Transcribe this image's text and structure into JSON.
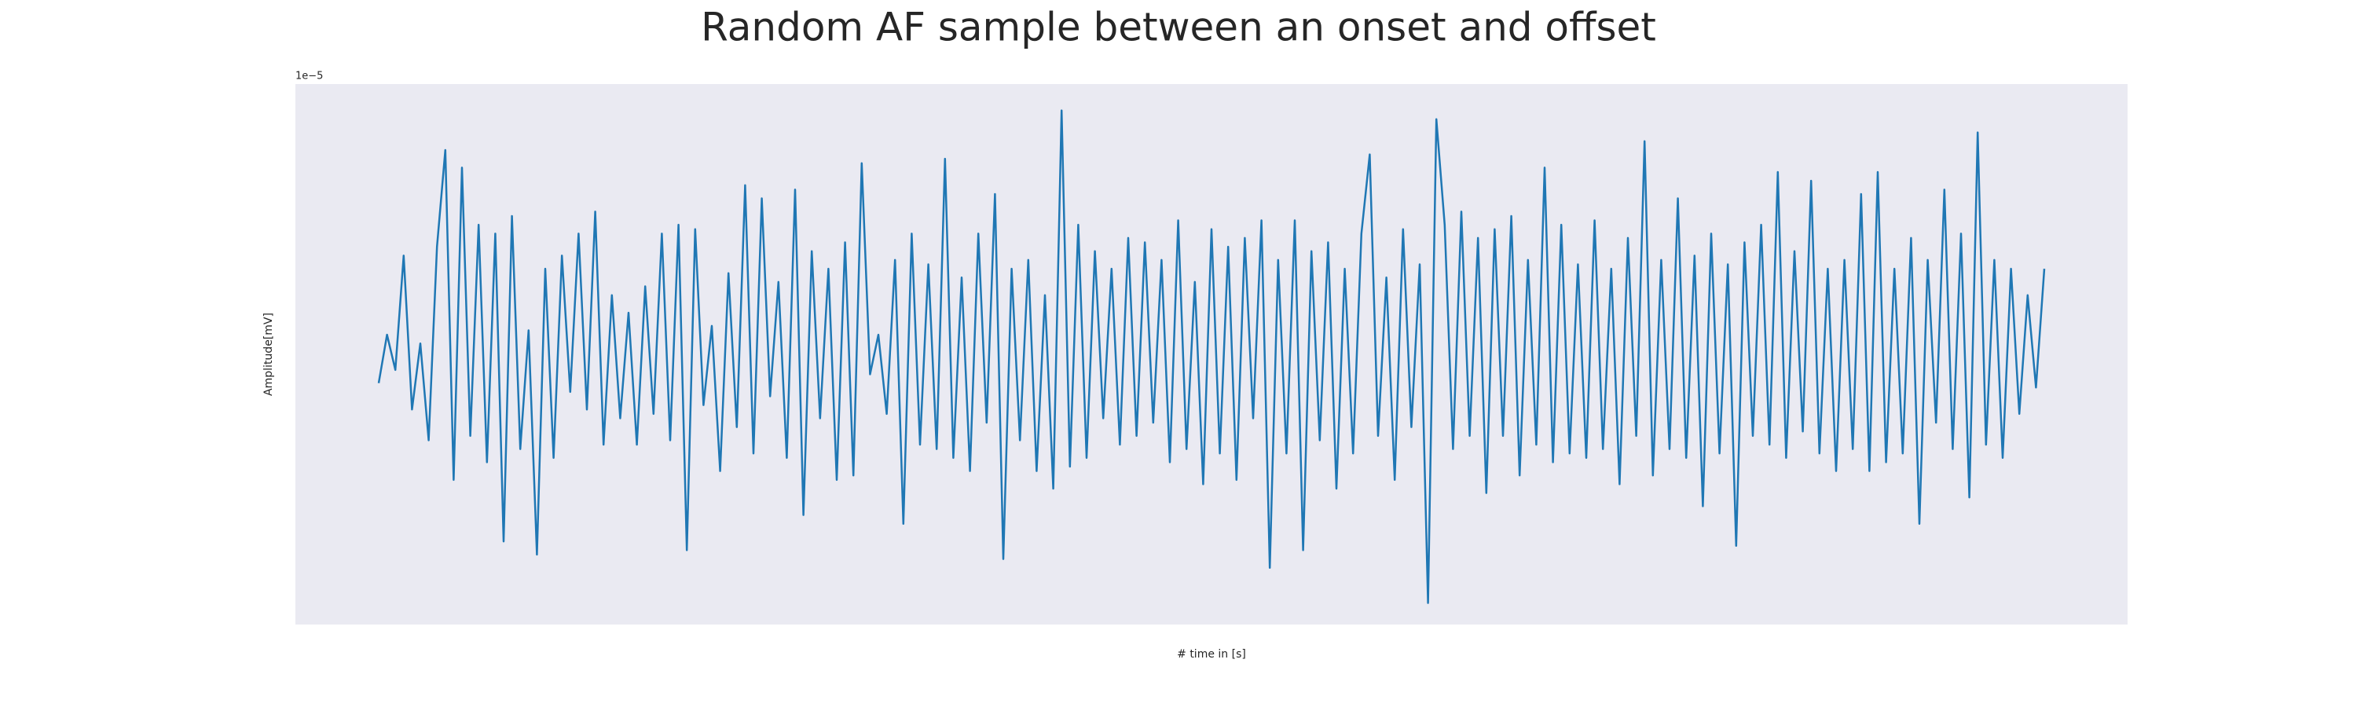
{
  "chart_data": {
    "type": "line",
    "title": "Random AF sample between an onset and offset",
    "xlabel": "# time in [s]",
    "ylabel": "Amplitude[mV]",
    "y_offset_label": "1e−5",
    "color": "#1f77b4",
    "grid": true,
    "minor_grid": true,
    "xlim": [
      -0.5,
      10.5
    ],
    "ylim": [
      -6.29,
      6.0
    ],
    "xticks": [
      0,
      1,
      2,
      3,
      4,
      5,
      6,
      7,
      8,
      9,
      10
    ],
    "yticks": [
      -6,
      -4,
      -2,
      0,
      2,
      4
    ],
    "x": [
      0,
      0.05,
      0.1,
      0.15,
      0.2,
      0.25,
      0.3,
      0.35,
      0.4,
      0.45,
      0.5,
      0.55,
      0.6,
      0.65,
      0.7,
      0.75,
      0.8,
      0.85,
      0.9,
      0.95,
      1,
      1.05,
      1.1,
      1.15,
      1.2,
      1.25,
      1.3,
      1.35,
      1.4,
      1.45,
      1.5,
      1.55,
      1.6,
      1.65,
      1.7,
      1.75,
      1.8,
      1.85,
      1.9,
      1.95,
      2,
      2.05,
      2.1,
      2.15,
      2.2,
      2.25,
      2.3,
      2.35,
      2.4,
      2.45,
      2.5,
      2.55,
      2.6,
      2.65,
      2.7,
      2.75,
      2.8,
      2.85,
      2.9,
      2.95,
      3,
      3.05,
      3.1,
      3.15,
      3.2,
      3.25,
      3.3,
      3.35,
      3.4,
      3.45,
      3.5,
      3.55,
      3.6,
      3.65,
      3.7,
      3.75,
      3.8,
      3.85,
      3.9,
      3.95,
      4,
      4.05,
      4.1,
      4.15,
      4.2,
      4.25,
      4.3,
      4.35,
      4.4,
      4.45,
      4.5,
      4.55,
      4.6,
      4.65,
      4.7,
      4.75,
      4.8,
      4.85,
      4.9,
      4.95,
      5,
      5.05,
      5.1,
      5.15,
      5.2,
      5.25,
      5.3,
      5.35,
      5.4,
      5.45,
      5.5,
      5.55,
      5.6,
      5.65,
      5.7,
      5.75,
      5.8,
      5.85,
      5.9,
      5.95,
      6,
      6.05,
      6.1,
      6.15,
      6.2,
      6.25,
      6.3,
      6.35,
      6.4,
      6.45,
      6.5,
      6.55,
      6.6,
      6.65,
      6.7,
      6.75,
      6.8,
      6.85,
      6.9,
      6.95,
      7,
      7.05,
      7.1,
      7.15,
      7.2,
      7.25,
      7.3,
      7.35,
      7.4,
      7.45,
      7.5,
      7.55,
      7.6,
      7.65,
      7.7,
      7.75,
      7.8,
      7.85,
      7.9,
      7.95,
      8,
      8.05,
      8.1,
      8.15,
      8.2,
      8.25,
      8.3,
      8.35,
      8.4,
      8.45,
      8.5,
      8.55,
      8.6,
      8.65,
      8.7,
      8.75,
      8.8,
      8.85,
      8.9,
      8.95,
      9,
      9.05,
      9.1,
      9.15,
      9.2,
      9.25,
      9.3,
      9.35,
      9.4,
      9.45,
      9.5,
      9.55,
      9.6,
      9.65,
      9.7,
      9.75,
      9.8,
      9.85,
      9.9,
      9.95,
      10
    ],
    "values": [
      -0.8,
      0.3,
      -0.5,
      2.1,
      -1.4,
      0.1,
      -2.1,
      2.3,
      4.5,
      -3.0,
      4.1,
      -2.0,
      2.8,
      -2.6,
      2.6,
      -4.4,
      3.0,
      -2.3,
      0.4,
      -4.7,
      1.8,
      -2.5,
      2.1,
      -1.0,
      2.6,
      -1.4,
      3.1,
      -2.2,
      1.2,
      -1.6,
      0.8,
      -2.2,
      1.4,
      -1.5,
      2.6,
      -2.1,
      2.8,
      -4.6,
      2.7,
      -1.3,
      0.5,
      -2.8,
      1.7,
      -1.8,
      3.7,
      -2.4,
      3.4,
      -1.1,
      1.5,
      -2.5,
      3.6,
      -3.8,
      2.2,
      -1.6,
      1.8,
      -3.0,
      2.4,
      -2.9,
      4.2,
      -0.6,
      0.3,
      -1.5,
      2.0,
      -4.0,
      2.6,
      -2.2,
      1.9,
      -2.3,
      4.3,
      -2.5,
      1.6,
      -2.8,
      2.6,
      -1.7,
      3.5,
      -4.8,
      1.8,
      -2.1,
      2.0,
      -2.8,
      1.2,
      -3.2,
      5.4,
      -2.7,
      2.8,
      -2.5,
      2.2,
      -1.6,
      1.8,
      -2.2,
      2.5,
      -2.0,
      2.4,
      -1.7,
      2.0,
      -2.6,
      2.9,
      -2.3,
      1.5,
      -3.1,
      2.7,
      -2.4,
      2.3,
      -3.0,
      2.5,
      -1.6,
      2.9,
      -5.0,
      2.0,
      -2.4,
      2.9,
      -4.6,
      2.2,
      -2.1,
      2.4,
      -3.2,
      1.8,
      -2.4,
      2.6,
      4.4,
      -2.0,
      1.6,
      -3.0,
      2.7,
      -1.8,
      1.9,
      -5.8,
      5.2,
      2.8,
      -2.3,
      3.1,
      -2.0,
      2.5,
      -3.3,
      2.7,
      -2.0,
      3.0,
      -2.9,
      2.0,
      -2.2,
      4.1,
      -2.6,
      2.8,
      -2.4,
      1.9,
      -2.5,
      2.9,
      -2.3,
      1.8,
      -3.1,
      2.5,
      -2.0,
      4.7,
      -2.9,
      2.0,
      -2.3,
      3.4,
      -2.5,
      2.1,
      -3.6,
      2.6,
      -2.4,
      1.9,
      -4.5,
      2.4,
      -2.0,
      2.8,
      -2.2,
      4.0,
      -2.5,
      2.2,
      -1.9,
      3.8,
      -2.4,
      1.8,
      -2.8,
      2.0,
      -2.3,
      3.5,
      -2.8,
      4.0,
      -2.6,
      1.8,
      -2.4,
      2.5,
      -4.0,
      2.0,
      -1.7,
      3.6,
      -2.3,
      2.6,
      -3.4,
      4.9,
      -2.2,
      2.0,
      -2.5,
      1.8,
      -1.5,
      1.2,
      -0.9,
      1.8
    ]
  }
}
